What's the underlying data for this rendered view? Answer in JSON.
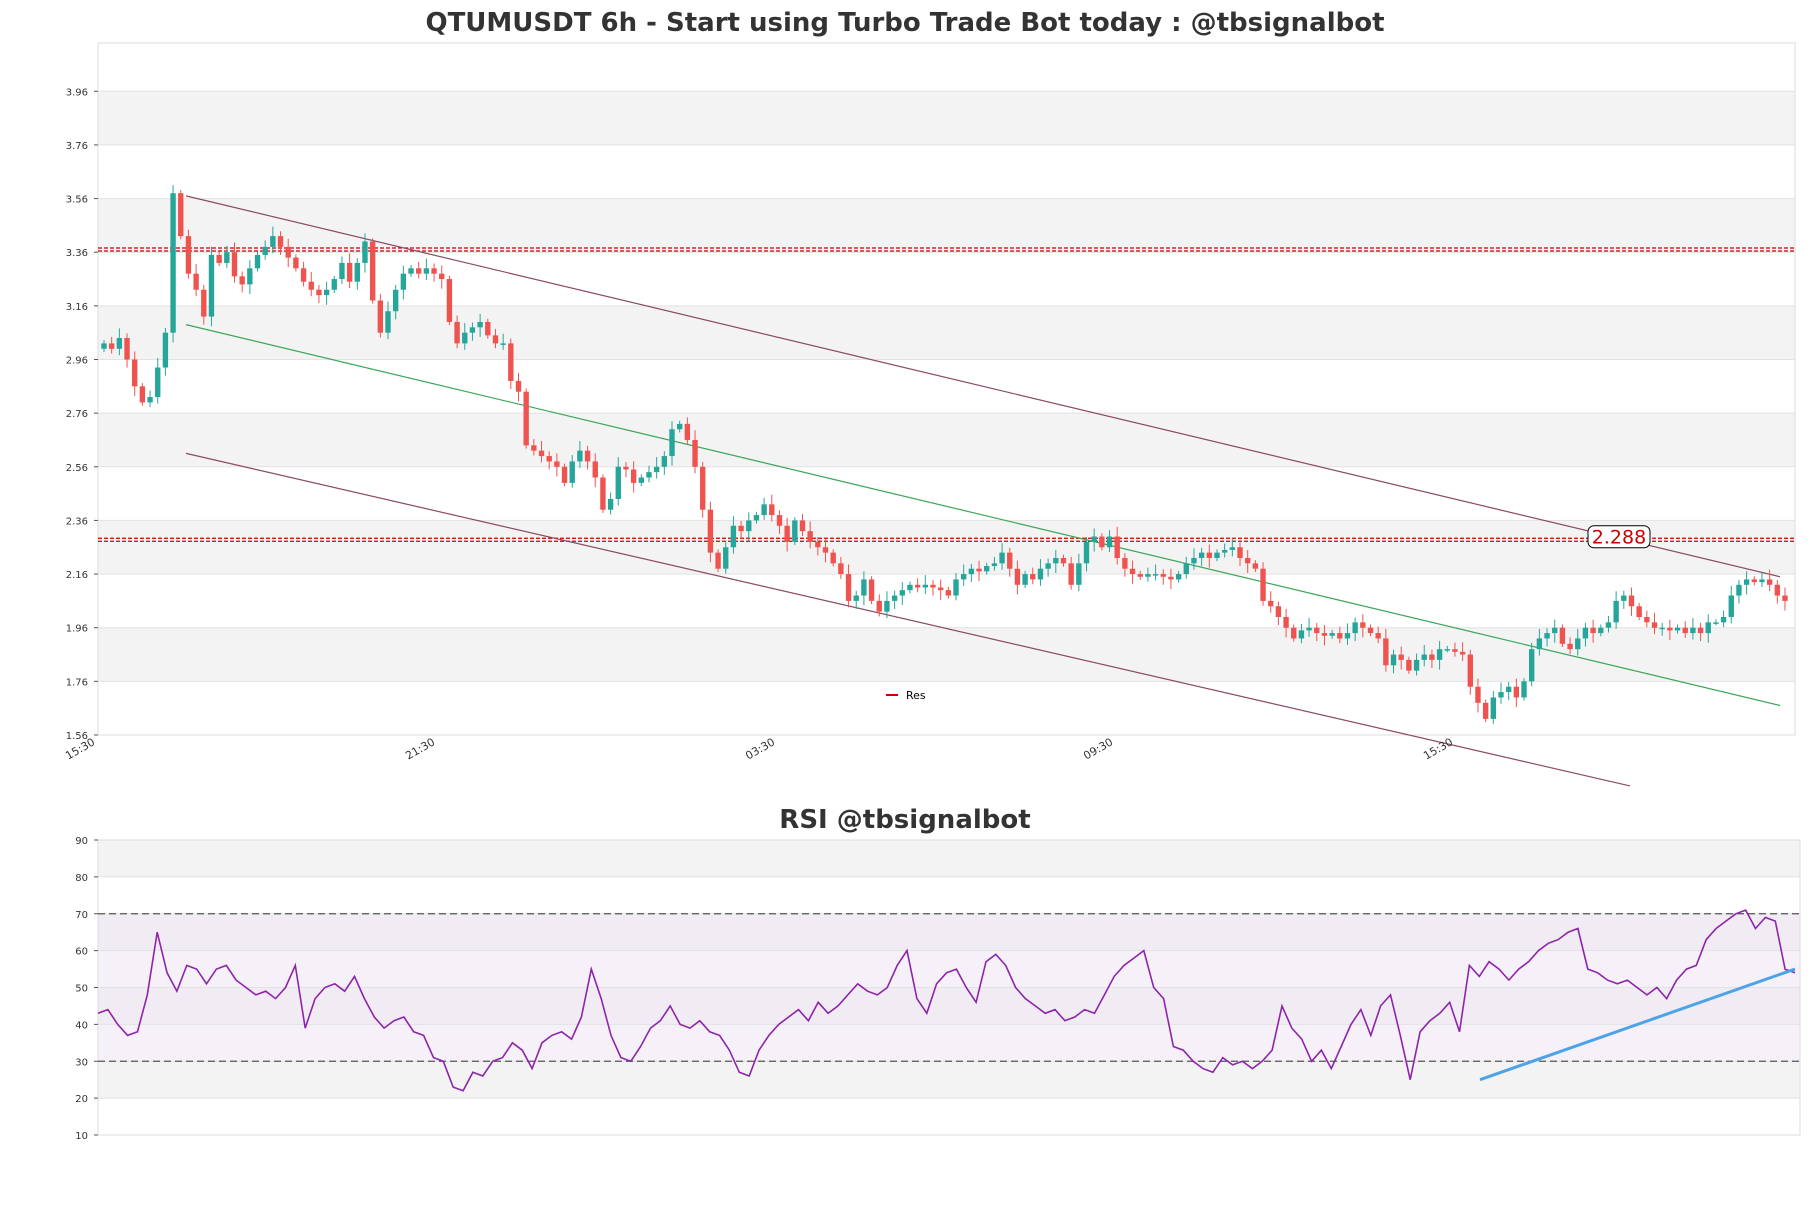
{
  "chart_data": [
    {
      "type": "candlestick",
      "title": "QTUMUSDT 6h - Start using Turbo Trade Bot today : @tbsignalbot",
      "ylim": [
        1.56,
        4.14
      ],
      "y_ticks": [
        "3.96",
        "3.76",
        "3.56",
        "3.36",
        "3.16",
        "2.96",
        "2.76",
        "2.56",
        "2.36",
        "2.16",
        "1.96",
        "1.76",
        "1.56"
      ],
      "x_ticks": [
        "15:30",
        "21:30",
        "03:30",
        "09:30",
        "15:30"
      ],
      "grid": "horizontal alternating bands",
      "up_color": "#26a69a",
      "down_color": "#ef5350",
      "resistance_levels": [
        3.37,
        2.288
      ],
      "resistance_color": "#cc0000",
      "price_badge": "2.288",
      "legend": [
        {
          "label": "Res",
          "color": "#cc0000"
        }
      ],
      "legend_position": "bottom-center",
      "channel_color": "#8b4a62",
      "midline_color": "#3aa657",
      "series": [
        {
          "name": "close",
          "values": [
            3.02,
            3.0,
            3.04,
            2.96,
            2.86,
            2.8,
            2.82,
            2.93,
            3.06,
            3.58,
            3.42,
            3.28,
            3.22,
            3.12,
            3.35,
            3.32,
            3.36,
            3.27,
            3.24,
            3.3,
            3.35,
            3.38,
            3.42,
            3.38,
            3.34,
            3.3,
            3.25,
            3.22,
            3.2,
            3.22,
            3.26,
            3.32,
            3.25,
            3.32,
            3.4,
            3.18,
            3.06,
            3.14,
            3.22,
            3.28,
            3.3,
            3.28,
            3.3,
            3.28,
            3.26,
            3.1,
            3.02,
            3.06,
            3.08,
            3.1,
            3.05,
            3.02,
            3.02,
            2.88,
            2.84,
            2.64,
            2.62,
            2.6,
            2.58,
            2.56,
            2.5,
            2.58,
            2.62,
            2.58,
            2.52,
            2.4,
            2.44,
            2.56,
            2.55,
            2.5,
            2.52,
            2.54,
            2.56,
            2.6,
            2.7,
            2.72,
            2.66,
            2.56,
            2.4,
            2.24,
            2.18,
            2.26,
            2.34,
            2.32,
            2.36,
            2.38,
            2.42,
            2.38,
            2.34,
            2.28,
            2.36,
            2.32,
            2.28,
            2.26,
            2.24,
            2.2,
            2.16,
            2.06,
            2.08,
            2.14,
            2.06,
            2.02,
            2.06,
            2.08,
            2.1,
            2.12,
            2.11,
            2.12,
            2.11,
            2.1,
            2.08,
            2.14,
            2.16,
            2.18,
            2.17,
            2.19,
            2.2,
            2.24,
            2.18,
            2.12,
            2.16,
            2.14,
            2.18,
            2.2,
            2.22,
            2.2,
            2.12,
            2.2,
            2.28,
            2.3,
            2.26,
            2.3,
            2.22,
            2.18,
            2.16,
            2.15,
            2.16,
            2.16,
            2.15,
            2.14,
            2.16,
            2.2,
            2.22,
            2.24,
            2.22,
            2.24,
            2.25,
            2.26,
            2.22,
            2.2,
            2.18,
            2.06,
            2.04,
            2.0,
            1.96,
            1.92,
            1.95,
            1.96,
            1.94,
            1.93,
            1.94,
            1.92,
            1.94,
            1.98,
            1.96,
            1.94,
            1.92,
            1.82,
            1.86,
            1.84,
            1.8,
            1.84,
            1.86,
            1.84,
            1.88,
            1.88,
            1.87,
            1.86,
            1.74,
            1.68,
            1.62,
            1.7,
            1.72,
            1.74,
            1.7,
            1.76,
            1.88,
            1.92,
            1.94,
            1.96,
            1.9,
            1.88,
            1.92,
            1.96,
            1.94,
            1.96,
            1.98,
            2.06,
            2.08,
            2.04,
            2.0,
            1.98,
            1.96,
            1.96,
            1.95,
            1.96,
            1.94,
            1.96,
            1.94,
            1.98,
            1.98,
            2.0,
            2.08,
            2.12,
            2.14,
            2.13,
            2.14,
            2.12,
            2.08,
            2.06
          ]
        }
      ]
    },
    {
      "type": "line",
      "title": "RSI @tbsignalbot",
      "ylim": [
        10,
        90
      ],
      "y_ticks": [
        "90",
        "80",
        "70",
        "60",
        "50",
        "40",
        "30",
        "20",
        "10"
      ],
      "reference_lines": [
        70,
        30
      ],
      "line_color": "#8e24aa",
      "trendline_color": "#4da3e8",
      "trendline_values": [
        25,
        55
      ],
      "grid": "horizontal alternating bands",
      "series": [
        {
          "name": "RSI",
          "values": [
            43,
            44,
            40,
            37,
            38,
            48,
            65,
            54,
            49,
            56,
            55,
            51,
            55,
            56,
            52,
            50,
            48,
            49,
            47,
            50,
            56,
            39,
            47,
            50,
            51,
            49,
            53,
            47,
            42,
            39,
            41,
            42,
            38,
            37,
            31,
            30,
            23,
            22,
            27,
            26,
            30,
            31,
            35,
            33,
            28,
            35,
            37,
            38,
            36,
            42,
            55,
            47,
            37,
            31,
            30,
            34,
            39,
            41,
            45,
            40,
            39,
            41,
            38,
            37,
            33,
            27,
            26,
            33,
            37,
            40,
            42,
            44,
            41,
            46,
            43,
            45,
            48,
            51,
            49,
            48,
            50,
            56,
            60,
            47,
            43,
            51,
            54,
            55,
            50,
            46,
            57,
            59,
            56,
            50,
            47,
            45,
            43,
            44,
            41,
            42,
            44,
            43,
            48,
            53,
            56,
            58,
            60,
            50,
            47,
            34,
            33,
            30,
            28,
            27,
            31,
            29,
            30,
            28,
            30,
            33,
            45,
            39,
            36,
            30,
            33,
            28,
            34,
            40,
            44,
            37,
            45,
            48,
            37,
            25,
            38,
            41,
            43,
            46,
            38,
            56,
            53,
            57,
            55,
            52,
            55,
            57,
            60,
            62,
            63,
            65,
            66,
            55,
            54,
            52,
            51,
            52,
            50,
            48,
            50,
            47,
            52,
            55,
            56,
            63,
            66,
            68,
            70,
            71,
            66,
            69,
            68,
            55,
            54
          ]
        }
      ]
    }
  ]
}
